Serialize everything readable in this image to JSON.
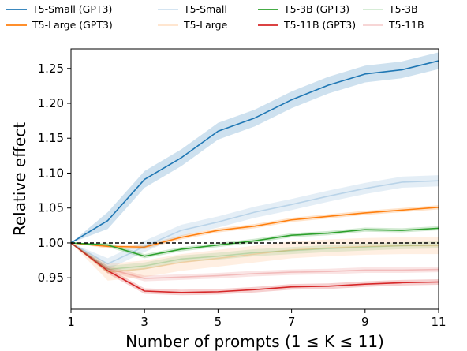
{
  "chart_data": {
    "type": "line",
    "title": "",
    "xlabel": "Number of prompts (1 ≤ K ≤ 11)",
    "ylabel": "Relative effect",
    "xlim": [
      1,
      11
    ],
    "ylim": [
      0.905,
      1.278
    ],
    "x_ticks": [
      1,
      3,
      5,
      7,
      9,
      11
    ],
    "x_tick_labels": [
      "1",
      "3",
      "5",
      "7",
      "9",
      "11"
    ],
    "y_ticks": [
      0.95,
      1.0,
      1.05,
      1.1,
      1.15,
      1.2,
      1.25
    ],
    "y_tick_labels": [
      "0.95",
      "1.00",
      "1.05",
      "1.10",
      "1.15",
      "1.20",
      "1.25"
    ],
    "grid": false,
    "legend_placement": "top",
    "reference_line": {
      "y": 1.0,
      "style": "dashed",
      "color": "#000000"
    },
    "x": [
      1,
      2,
      3,
      4,
      5,
      6,
      7,
      8,
      9,
      10,
      11
    ],
    "series": [
      {
        "name": "T5-Small (GPT3)",
        "color": "#1f77b4",
        "alpha": 1.0,
        "values": [
          1.0,
          1.032,
          1.091,
          1.122,
          1.16,
          1.179,
          1.205,
          1.226,
          1.242,
          1.248,
          1.261
        ],
        "band": 0.012
      },
      {
        "name": "T5-Large (GPT3)",
        "color": "#ff7f0e",
        "alpha": 1.0,
        "values": [
          1.0,
          0.995,
          0.994,
          1.008,
          1.018,
          1.024,
          1.033,
          1.038,
          1.043,
          1.047,
          1.051
        ],
        "band": 0.003
      },
      {
        "name": "T5-Small",
        "color": "#1f77b4",
        "alpha": 0.22,
        "values": [
          1.0,
          0.97,
          0.995,
          1.018,
          1.03,
          1.044,
          1.055,
          1.067,
          1.078,
          1.087,
          1.089
        ],
        "band": 0.008
      },
      {
        "name": "T5-Large",
        "color": "#ff7f0e",
        "alpha": 0.22,
        "values": [
          1.0,
          0.958,
          0.963,
          0.972,
          0.978,
          0.984,
          0.99,
          0.993,
          0.995,
          0.996,
          0.996
        ],
        "band": 0.012
      },
      {
        "name": "T5-3B (GPT3)",
        "color": "#2ca02c",
        "alpha": 1.0,
        "values": [
          1.0,
          0.997,
          0.981,
          0.991,
          0.997,
          1.003,
          1.011,
          1.014,
          1.019,
          1.018,
          1.021
        ],
        "band": 0.003
      },
      {
        "name": "T5-11B (GPT3)",
        "color": "#d62728",
        "alpha": 1.0,
        "values": [
          1.0,
          0.96,
          0.931,
          0.929,
          0.93,
          0.933,
          0.937,
          0.938,
          0.941,
          0.943,
          0.944
        ],
        "band": 0.004
      },
      {
        "name": "T5-3B",
        "color": "#2ca02c",
        "alpha": 0.22,
        "values": [
          1.0,
          0.962,
          0.967,
          0.977,
          0.981,
          0.986,
          0.989,
          0.992,
          0.994,
          0.996,
          0.997
        ],
        "band": 0.005
      },
      {
        "name": "T5-11B",
        "color": "#d62728",
        "alpha": 0.22,
        "values": [
          1.0,
          0.963,
          0.949,
          0.951,
          0.953,
          0.956,
          0.958,
          0.959,
          0.961,
          0.961,
          0.962
        ],
        "band": 0.004
      }
    ]
  }
}
